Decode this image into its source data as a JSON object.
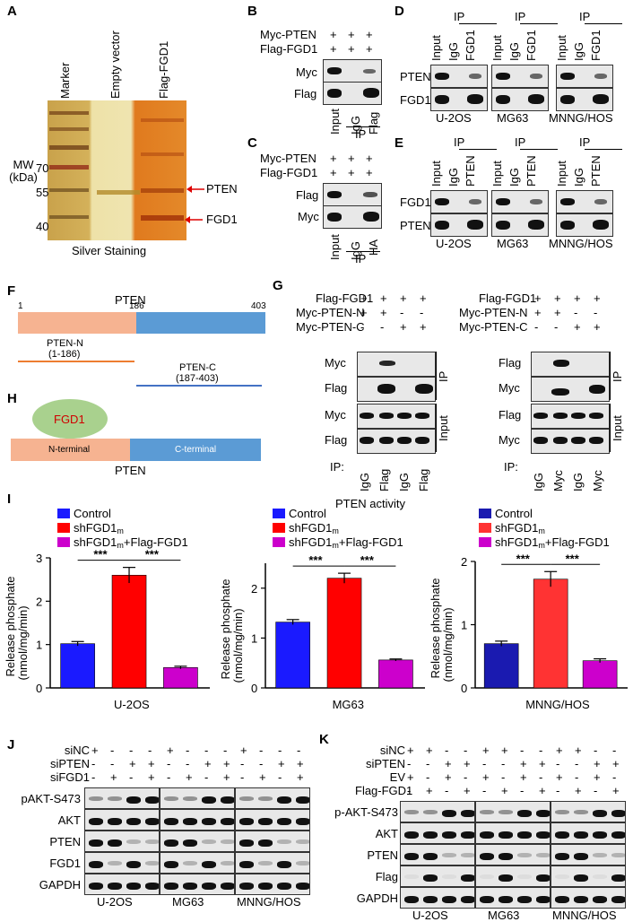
{
  "panels": {
    "A": {
      "letter": "A",
      "lanes": [
        "Marker",
        "Empty vector",
        "Flag-FGD1"
      ],
      "mw_label": "MW (kDa)",
      "mw_marks": [
        "70",
        "55",
        "40"
      ],
      "arrows": [
        "PTEN",
        "FGD1"
      ],
      "caption": "Silver Staining"
    },
    "B": {
      "letter": "B",
      "rows": [
        "Myc-PTEN",
        "Flag-FGD1"
      ],
      "signs": [
        [
          "+",
          "+",
          "+"
        ],
        [
          "+",
          "+",
          "+"
        ]
      ],
      "blots": [
        "Myc",
        "Flag"
      ],
      "lanes": [
        "Input",
        "IgG",
        "Flag"
      ],
      "ip": "IP"
    },
    "C": {
      "letter": "C",
      "rows": [
        "Myc-PTEN",
        "Flag-FGD1"
      ],
      "signs": [
        [
          "+",
          "+",
          "+"
        ],
        [
          "+",
          "+",
          "+"
        ]
      ],
      "blots": [
        "Flag",
        "Myc"
      ],
      "lanes": [
        "Input",
        "IgG",
        "HA"
      ],
      "ip": "IP"
    },
    "D": {
      "letter": "D",
      "blots": [
        "PTEN",
        "FGD1"
      ],
      "lanes": [
        "Input",
        "IgG",
        "FGD1"
      ],
      "ip": "IP",
      "cells": [
        "U-2OS",
        "MG63",
        "MNNG/HOS"
      ]
    },
    "E": {
      "letter": "E",
      "blots": [
        "FGD1",
        "PTEN"
      ],
      "lanes": [
        "Input",
        "IgG",
        "PTEN"
      ],
      "ip": "IP",
      "cells": [
        "U-2OS",
        "MG63",
        "MNNG/HOS"
      ]
    },
    "F": {
      "letter": "F",
      "title": "PTEN",
      "pos_start": "1",
      "pos_mid": "186",
      "pos_end": "403",
      "n_label": "PTEN-N",
      "n_range": "(1-186)",
      "c_label": "PTEN-C",
      "c_range": "(187-403)"
    },
    "G": {
      "letter": "G",
      "left": {
        "rows": [
          "Flag-FGD1",
          "Myc-PTEN-N",
          "Myc-PTEN-C"
        ],
        "signs": [
          [
            "+",
            "+",
            "+",
            "+"
          ],
          [
            "+",
            "+",
            "-",
            "-"
          ],
          [
            "-",
            "-",
            "+",
            "+"
          ]
        ],
        "ip_blots": [
          "Myc",
          "Flag"
        ],
        "input_blots": [
          "Myc",
          "Flag"
        ],
        "ip_lanes": [
          "IgG",
          "Flag",
          "IgG",
          "Flag"
        ]
      },
      "right": {
        "rows": [
          "Flag-FGD1",
          "Myc-PTEN-N",
          "Myc-PTEN-C"
        ],
        "signs": [
          [
            "+",
            "+",
            "+",
            "+"
          ],
          [
            "+",
            "+",
            "-",
            "-"
          ],
          [
            "-",
            "-",
            "+",
            "+"
          ]
        ],
        "ip_blots": [
          "Flag",
          "Myc"
        ],
        "input_blots": [
          "Flag",
          "Myc"
        ],
        "ip_lanes": [
          "IgG",
          "Myc",
          "IgG",
          "Myc"
        ]
      },
      "ip": "IP",
      "input": "Input",
      "ip_prefix": "IP:"
    },
    "H": {
      "letter": "H",
      "fgd1": "FGD1",
      "n_term": "N-terminal",
      "c_term": "C-terminal",
      "title": "PTEN"
    },
    "J": {
      "letter": "J",
      "rows": [
        "siNC",
        "siPTEN",
        "siFGD1"
      ],
      "signs": [
        [
          "+",
          "-",
          "-",
          "-"
        ],
        [
          "-",
          "-",
          "+",
          "+"
        ],
        [
          "-",
          "+",
          "-",
          "+"
        ]
      ],
      "blots": [
        "pAKT-S473",
        "AKT",
        "PTEN",
        "FGD1",
        "GAPDH"
      ],
      "cells": [
        "U-2OS",
        "MG63",
        "MNNG/HOS"
      ]
    },
    "K": {
      "letter": "K",
      "rows": [
        "siNC",
        "siPTEN",
        "EV",
        "Flag-FGD1"
      ],
      "signs": [
        [
          "+",
          "+",
          "-",
          "-"
        ],
        [
          "-",
          "-",
          "+",
          "+"
        ],
        [
          "+",
          "-",
          "+",
          "-"
        ],
        [
          "-",
          "+",
          "-",
          "+"
        ]
      ],
      "blots": [
        "p-AKT-S473",
        "AKT",
        "PTEN",
        "Flag",
        "GAPDH"
      ],
      "cells": [
        "U-2OS",
        "MG63",
        "MNNG/HOS"
      ]
    }
  },
  "chart_data": [
    {
      "type": "bar",
      "panel": "I",
      "suptitle": "PTEN activity",
      "legend": [
        "Control",
        "shFGD1m",
        "shFGD1m+Flag-FGD1"
      ],
      "categories": [
        "Control",
        "shFGD1m",
        "shFGD1m+Flag-FGD1"
      ],
      "values": [
        1.02,
        2.6,
        0.47
      ],
      "errors": [
        0.05,
        0.18,
        0.03
      ],
      "colors": [
        "#1a1aff",
        "#ff0000",
        "#cc00cc"
      ],
      "xlabel": "U-2OS",
      "ylabel": "Release phosphate (nmol/mg/min)",
      "ylim": [
        0,
        3
      ],
      "yticks": [
        "0",
        "1",
        "2",
        "3"
      ],
      "significance": [
        "***",
        "***"
      ]
    },
    {
      "type": "bar",
      "panel": "I",
      "legend": [
        "Control",
        "shFGD1m",
        "shFGD1m+Flag-FGD1"
      ],
      "categories": [
        "Control",
        "shFGD1m",
        "shFGD1m+Flag-FGD1"
      ],
      "values": [
        1.32,
        2.2,
        0.56
      ],
      "errors": [
        0.05,
        0.1,
        0.02
      ],
      "colors": [
        "#1a1aff",
        "#ff0000",
        "#cc00cc"
      ],
      "xlabel": "MG63",
      "ylabel": "Release phosphate (nmol/mg/min)",
      "ylim": [
        0,
        2.5
      ],
      "yticks": [
        "0",
        "1",
        "2"
      ],
      "significance": [
        "***",
        "***"
      ]
    },
    {
      "type": "bar",
      "panel": "I",
      "legend": [
        "Control",
        "shFGD1m",
        "shFGD1m+Flag-FGD1"
      ],
      "categories": [
        "Control",
        "shFGD1m",
        "shFGD1m+Flag-FGD1"
      ],
      "values": [
        0.7,
        1.72,
        0.43
      ],
      "errors": [
        0.04,
        0.12,
        0.03
      ],
      "colors": [
        "#1a1ab0",
        "#ff3333",
        "#cc00cc"
      ],
      "xlabel": "MNNG/HOS",
      "ylabel": "Release phosphate (nmol/mg/min)",
      "ylim": [
        0,
        2
      ],
      "yticks": [
        "0",
        "1",
        "2"
      ],
      "significance": [
        "***",
        "***"
      ]
    }
  ],
  "legend_label_i": "I"
}
